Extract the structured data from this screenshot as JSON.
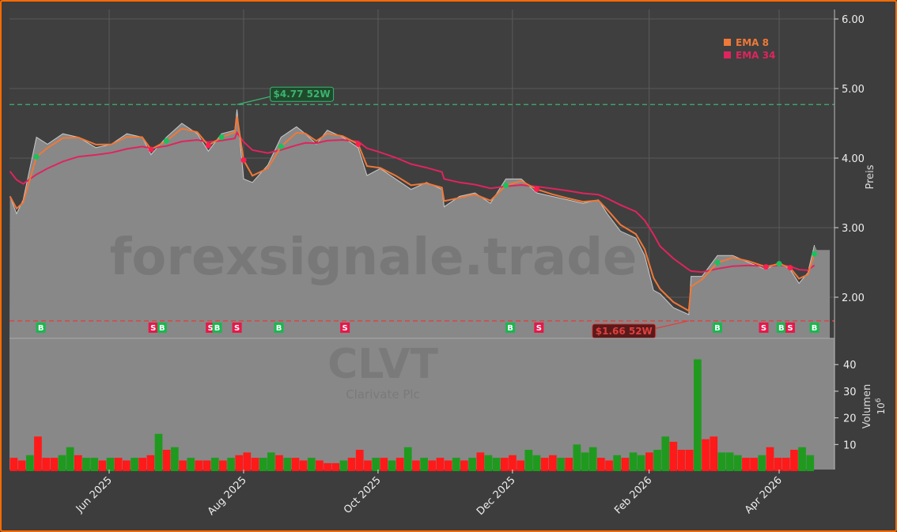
{
  "chart_data": {
    "type": "line",
    "ticker": "CLVT",
    "company": "Clarivate Plc",
    "watermark": "forexsignale.trade",
    "ylabel_price": "Preis",
    "ylabel_volume": "Volumen",
    "volume_unit": "10^6",
    "volume_unit_base": "10",
    "volume_unit_exp": "6",
    "price_ylim": [
      1.4,
      6.1
    ],
    "price_ticks": [
      "2.00",
      "3.00",
      "4.00",
      "5.00",
      "6.00"
    ],
    "volume_ylim": [
      0,
      45
    ],
    "volume_ticks": [
      "10",
      "20",
      "30",
      "40"
    ],
    "x_ticks": [
      {
        "date": "2025-06-01",
        "label": "Jun 2025"
      },
      {
        "date": "2025-08-01",
        "label": "Aug 2025"
      },
      {
        "date": "2025-10-01",
        "label": "Oct 2025"
      },
      {
        "date": "2025-12-01",
        "label": "Dec 2025"
      },
      {
        "date": "2026-02-01",
        "label": "Feb 2026"
      },
      {
        "date": "2026-04-01",
        "label": "Apr 2026"
      }
    ],
    "grid": true,
    "legend_position": "top-right",
    "legend": [
      {
        "name": "EMA 8",
        "color": "#f07838",
        "period": 8
      },
      {
        "name": "EMA 34",
        "color": "#e0245e",
        "period": 34
      }
    ],
    "ema34_start": 3.9,
    "close": [
      [
        "2025-04-17",
        3.45
      ],
      [
        "2025-04-20",
        3.2
      ],
      [
        "2025-04-23",
        3.4
      ],
      [
        "2025-04-29",
        4.3
      ],
      [
        "2025-05-04",
        4.2
      ],
      [
        "2025-05-11",
        4.35
      ],
      [
        "2025-05-18",
        4.3
      ],
      [
        "2025-05-26",
        4.15
      ],
      [
        "2025-06-02",
        4.2
      ],
      [
        "2025-06-09",
        4.35
      ],
      [
        "2025-06-16",
        4.3
      ],
      [
        "2025-06-20",
        4.05
      ],
      [
        "2025-06-27",
        4.3
      ],
      [
        "2025-07-04",
        4.5
      ],
      [
        "2025-07-11",
        4.35
      ],
      [
        "2025-07-16",
        4.1
      ],
      [
        "2025-07-22",
        4.35
      ],
      [
        "2025-07-28",
        4.4
      ],
      [
        "2025-07-29",
        4.7
      ],
      [
        "2025-08-01",
        3.7
      ],
      [
        "2025-08-05",
        3.65
      ],
      [
        "2025-08-12",
        3.9
      ],
      [
        "2025-08-18",
        4.3
      ],
      [
        "2025-08-25",
        4.45
      ],
      [
        "2025-08-29",
        4.35
      ],
      [
        "2025-09-03",
        4.2
      ],
      [
        "2025-09-08",
        4.4
      ],
      [
        "2025-09-15",
        4.3
      ],
      [
        "2025-09-22",
        4.15
      ],
      [
        "2025-09-26",
        3.75
      ],
      [
        "2025-10-02",
        3.85
      ],
      [
        "2025-10-09",
        3.7
      ],
      [
        "2025-10-16",
        3.55
      ],
      [
        "2025-10-23",
        3.65
      ],
      [
        "2025-10-30",
        3.55
      ],
      [
        "2025-10-31",
        3.3
      ],
      [
        "2025-11-07",
        3.45
      ],
      [
        "2025-11-14",
        3.5
      ],
      [
        "2025-11-21",
        3.35
      ],
      [
        "2025-11-28",
        3.7
      ],
      [
        "2025-12-05",
        3.7
      ],
      [
        "2025-12-12",
        3.5
      ],
      [
        "2025-12-19",
        3.45
      ],
      [
        "2025-12-26",
        3.4
      ],
      [
        "2026-01-02",
        3.35
      ],
      [
        "2026-01-09",
        3.4
      ],
      [
        "2026-01-13",
        3.2
      ],
      [
        "2026-01-19",
        2.95
      ],
      [
        "2026-01-26",
        2.85
      ],
      [
        "2026-01-30",
        2.6
      ],
      [
        "2026-02-03",
        2.1
      ],
      [
        "2026-02-06",
        2.05
      ],
      [
        "2026-02-12",
        1.85
      ],
      [
        "2026-02-19",
        1.75
      ],
      [
        "2026-02-20",
        2.3
      ],
      [
        "2026-02-25",
        2.3
      ],
      [
        "2026-03-04",
        2.6
      ],
      [
        "2026-03-11",
        2.6
      ],
      [
        "2026-03-18",
        2.5
      ],
      [
        "2026-03-26",
        2.4
      ],
      [
        "2026-04-01",
        2.5
      ],
      [
        "2026-04-06",
        2.4
      ],
      [
        "2026-04-10",
        2.2
      ],
      [
        "2026-04-14",
        2.35
      ],
      [
        "2026-04-17",
        2.75
      ]
    ],
    "last_price_extension": 2.68,
    "high_52w": {
      "value": 4.77,
      "label": "$4.77 52W",
      "date": "2025-07-29",
      "color": "#2ecc71"
    },
    "low_52w": {
      "value": 1.66,
      "label": "$1.66 52W",
      "date": "2026-02-19",
      "color": "#ff3b3b"
    },
    "signals": [
      {
        "date": "2025-05-01",
        "type": "B"
      },
      {
        "date": "2025-06-21",
        "type": "S"
      },
      {
        "date": "2025-06-25",
        "type": "B"
      },
      {
        "date": "2025-07-17",
        "type": "S"
      },
      {
        "date": "2025-07-20",
        "type": "B"
      },
      {
        "date": "2025-07-29",
        "type": "S"
      },
      {
        "date": "2025-08-17",
        "type": "B"
      },
      {
        "date": "2025-09-16",
        "type": "S"
      },
      {
        "date": "2025-11-30",
        "type": "B"
      },
      {
        "date": "2025-12-13",
        "type": "S"
      },
      {
        "date": "2026-03-04",
        "type": "B"
      },
      {
        "date": "2026-03-25",
        "type": "S"
      },
      {
        "date": "2026-04-02",
        "type": "B"
      },
      {
        "date": "2026-04-06",
        "type": "S"
      },
      {
        "date": "2026-04-17",
        "type": "B"
      }
    ],
    "volume_start": "2025-04-17",
    "volume_end": "2026-04-17",
    "volume_note_sign": "positive = up day, negative = down day",
    "volume": [
      -5,
      -4,
      6,
      -13,
      -5,
      -5,
      6,
      9,
      -6,
      5,
      5,
      -4,
      5,
      -5,
      -4,
      5,
      -5,
      -6,
      14,
      -8,
      9,
      -4,
      5,
      -4,
      -4,
      5,
      -4,
      5,
      -6,
      -7,
      -5,
      5,
      7,
      -6,
      5,
      -5,
      -4,
      5,
      -4,
      -3,
      -3,
      4,
      -5,
      -8,
      -4,
      5,
      -5,
      4,
      -5,
      9,
      -4,
      5,
      -4,
      -5,
      -4,
      5,
      -4,
      5,
      -7,
      6,
      5,
      -5,
      -6,
      -4,
      8,
      6,
      -5,
      -6,
      5,
      -5,
      10,
      7,
      9,
      -5,
      -4,
      6,
      -5,
      7,
      6,
      -7,
      8,
      13,
      -11,
      -8,
      -8,
      42,
      -12,
      -13,
      7,
      7,
      6,
      -5,
      -5,
      6,
      -9,
      -5,
      -5,
      -8,
      9,
      6
    ],
    "up_color": "#1f9a1f",
    "down_color": "#ff1a1a"
  }
}
